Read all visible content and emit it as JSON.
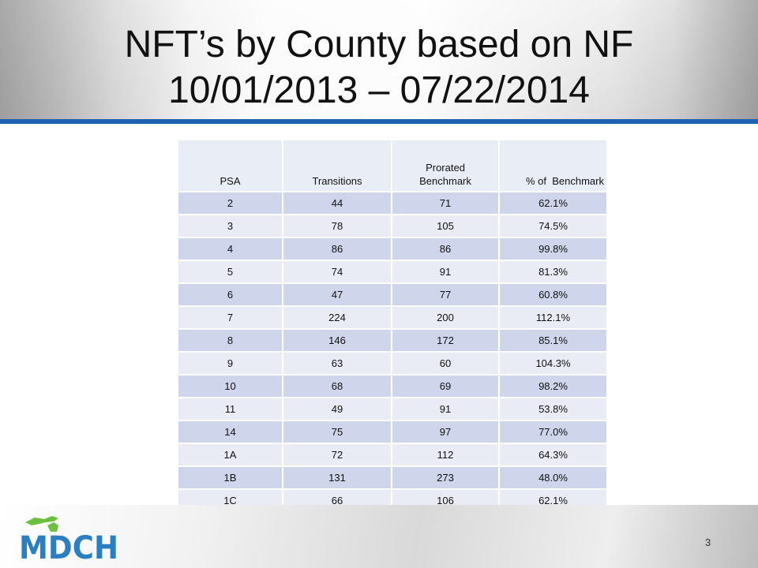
{
  "slide": {
    "title_line1": "NFT’s by County based on NF",
    "title_line2": "10/01/2013 – 07/22/2014",
    "page_number": "3",
    "logo_text": "MDCH",
    "accent_color": "#1f62b2",
    "logo_color": "#2a7fc1",
    "logo_green": "#6cbf3f"
  },
  "table": {
    "headers": [
      "PSA",
      "Transitions",
      "Prorated Benchmark",
      "% of  Benchmark"
    ],
    "rows": [
      [
        "2",
        "44",
        "71",
        "62.1%"
      ],
      [
        "3",
        "78",
        "105",
        "74.5%"
      ],
      [
        "4",
        "86",
        "86",
        "99.8%"
      ],
      [
        "5",
        "74",
        "91",
        "81.3%"
      ],
      [
        "6",
        "47",
        "77",
        "60.8%"
      ],
      [
        "7",
        "224",
        "200",
        "112.1%"
      ],
      [
        "8",
        "146",
        "172",
        "85.1%"
      ],
      [
        "9",
        "63",
        "60",
        "104.3%"
      ],
      [
        "10",
        "68",
        "69",
        "98.2%"
      ],
      [
        "11",
        "49",
        "91",
        "53.8%"
      ],
      [
        "14",
        "75",
        "97",
        "77.0%"
      ],
      [
        "1A",
        "72",
        "112",
        "64.3%"
      ],
      [
        "1B",
        "131",
        "273",
        "48.0%"
      ],
      [
        "1C",
        "66",
        "106",
        "62.1%"
      ]
    ]
  }
}
